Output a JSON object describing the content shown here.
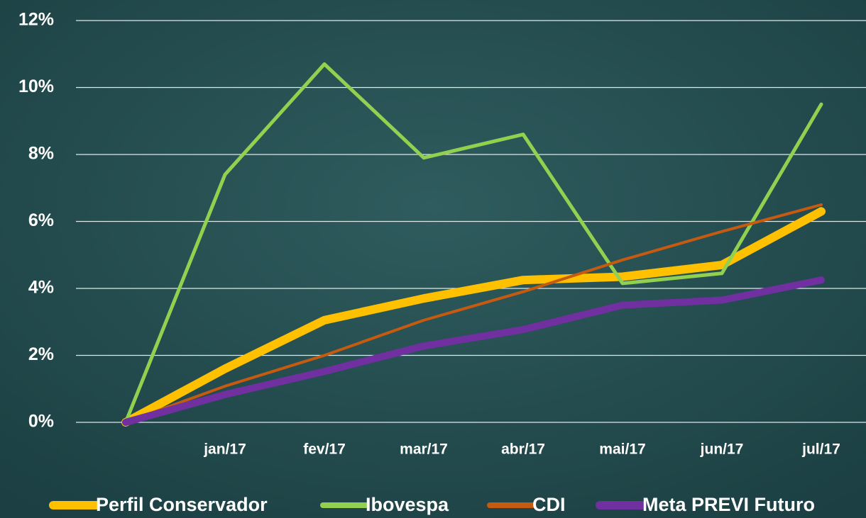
{
  "chart_data": {
    "type": "line",
    "categories": [
      null,
      "jan/17",
      "fev/17",
      "mar/17",
      "abr/17",
      "mai/17",
      "jun/17",
      "jul/17"
    ],
    "series": [
      {
        "name": "Perfil Conservador",
        "color": "#ffc000",
        "values": [
          0,
          1.6,
          3.05,
          3.7,
          4.25,
          4.35,
          4.7,
          6.3
        ]
      },
      {
        "name": "Ibovespa",
        "color": "#92d050",
        "values": [
          0,
          7.4,
          10.7,
          7.9,
          8.6,
          4.15,
          4.45,
          9.5
        ]
      },
      {
        "name": "CDI",
        "color": "#c55a11",
        "values": [
          0,
          1.08,
          2.0,
          3.05,
          3.9,
          4.85,
          5.7,
          6.5
        ]
      },
      {
        "name": "Meta PREVI Futuro",
        "color": "#7030a0",
        "values": [
          0,
          0.83,
          1.52,
          2.28,
          2.77,
          3.5,
          3.65,
          4.25
        ]
      }
    ],
    "ylim": [
      0,
      12
    ],
    "yticks": [
      {
        "value": 0,
        "label": "0%"
      },
      {
        "value": 2,
        "label": "2%"
      },
      {
        "value": 4,
        "label": "4%"
      },
      {
        "value": 6,
        "label": "6%"
      },
      {
        "value": 8,
        "label": "8%"
      },
      {
        "value": 10,
        "label": "10%"
      },
      {
        "value": 12,
        "label": "12%"
      }
    ],
    "grid": true,
    "legend": "bottom"
  }
}
